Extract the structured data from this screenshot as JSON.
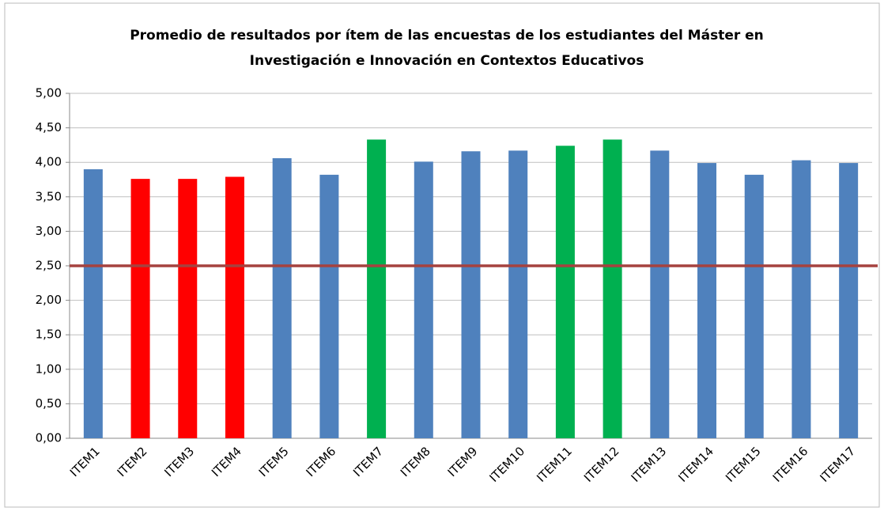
{
  "chart_data": {
    "type": "bar",
    "title": [
      "Promedio de resultados por ítem de las encuestas de los estudiantes del Máster en",
      "Investigación e Innovación en Contextos Educativos"
    ],
    "categories": [
      "ITEM1",
      "ITEM2",
      "ITEM3",
      "ITEM4",
      "ITEM5",
      "ITEM6",
      "ITEM7",
      "ITEM8",
      "ITEM9",
      "ITEM10",
      "ITEM11",
      "ITEM12",
      "ITEM13",
      "ITEM14",
      "ITEM15",
      "ITEM16",
      "ITEM17"
    ],
    "values": [
      3.9,
      3.76,
      3.76,
      3.79,
      4.06,
      3.82,
      4.33,
      4.01,
      4.16,
      4.17,
      4.24,
      4.33,
      4.17,
      3.99,
      3.82,
      4.03,
      3.99
    ],
    "colors": [
      "#4f81bd",
      "#ff0000",
      "#ff0000",
      "#ff0000",
      "#4f81bd",
      "#4f81bd",
      "#00b050",
      "#4f81bd",
      "#4f81bd",
      "#4f81bd",
      "#00b050",
      "#00b050",
      "#4f81bd",
      "#4f81bd",
      "#4f81bd",
      "#4f81bd",
      "#4f81bd"
    ],
    "reference_line": 2.5,
    "reference_color": "#a5423f",
    "ylim": [
      0,
      5
    ],
    "yticks": [
      {
        "value": 0,
        "label": "0,00"
      },
      {
        "value": 0.5,
        "label": "0,50"
      },
      {
        "value": 1,
        "label": "1,00"
      },
      {
        "value": 1.5,
        "label": "1,50"
      },
      {
        "value": 2,
        "label": "2,00"
      },
      {
        "value": 2.5,
        "label": "2,50"
      },
      {
        "value": 3,
        "label": "3,00"
      },
      {
        "value": 3.5,
        "label": "3,50"
      },
      {
        "value": 4,
        "label": "4,00"
      },
      {
        "value": 4.5,
        "label": "4,50"
      },
      {
        "value": 5,
        "label": "5,00"
      }
    ],
    "grid": true
  }
}
